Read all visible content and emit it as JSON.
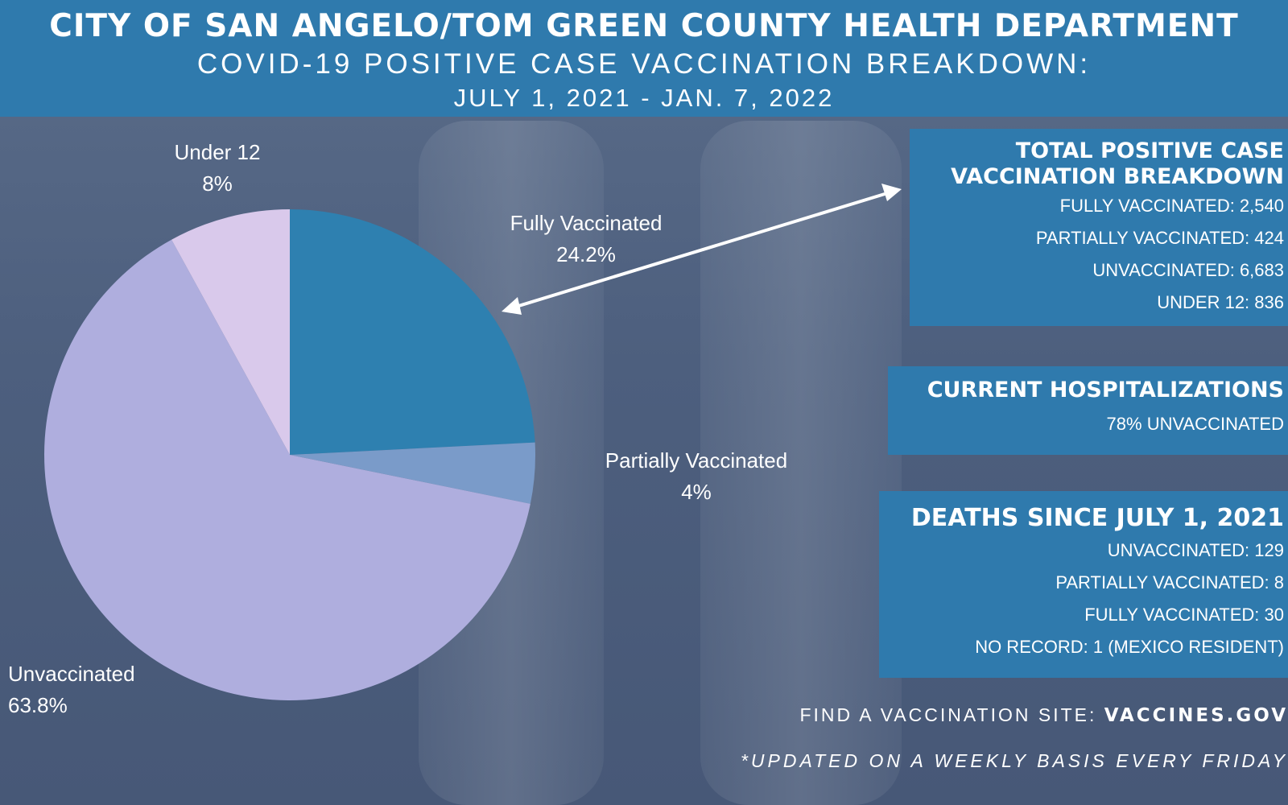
{
  "header": {
    "title": "CITY OF SAN ANGELO/TOM GREEN COUNTY HEALTH DEPARTMENT",
    "subtitle": "COVID-19 POSITIVE CASE VACCINATION BREAKDOWN:",
    "date_range": "JULY 1, 2021 - JAN. 7, 2022"
  },
  "chart_data": {
    "type": "pie",
    "title": "COVID-19 POSITIVE CASE VACCINATION BREAKDOWN",
    "start_angle": "12 o'clock, clockwise",
    "slices": [
      {
        "name": "Fully Vaccinated",
        "pct": "24.2%",
        "value": 24.2,
        "color": "#2e80b0"
      },
      {
        "name": "Partially Vaccinated",
        "pct": "4%",
        "value": 4,
        "color": "#7a9bc9"
      },
      {
        "name": "Unvaccinated",
        "pct": "63.8%",
        "value": 63.8,
        "color": "#afaede"
      },
      {
        "name": "Under 12",
        "pct": "8%",
        "value": 8,
        "color": "#d9c9eb"
      }
    ]
  },
  "totals_panel": {
    "title_line1": "TOTAL POSITIVE CASE",
    "title_line2": "VACCINATION BREAKDOWN",
    "lines": [
      "FULLY VACCINATED: 2,540",
      "PARTIALLY VACCINATED: 424",
      "UNVACCINATED: 6,683",
      "UNDER 12: 836"
    ]
  },
  "hosp_panel": {
    "title": "CURRENT HOSPITALIZATIONS",
    "line": "78% UNVACCINATED"
  },
  "deaths_panel": {
    "title": "DEATHS SINCE JULY 1, 2021",
    "lines": [
      "UNVACCINATED: 129",
      "PARTIALLY VACCINATED: 8",
      "FULLY VACCINATED: 30",
      "NO RECORD: 1 (MEXICO RESIDENT)"
    ]
  },
  "footer": {
    "site_prefix": "FIND A VACCINATION SITE:",
    "site_url": "VACCINES.GOV",
    "note": "*UPDATED ON A WEEKLY BASIS EVERY FRIDAY"
  },
  "colors": {
    "header_bg": "#2f7aad",
    "panel_bg": "#2f7aad",
    "background": "#4f6080"
  }
}
